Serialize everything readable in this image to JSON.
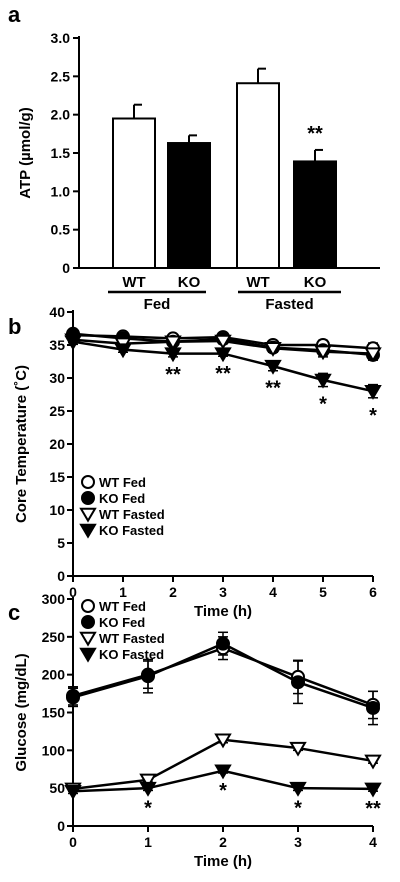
{
  "chart_data": [
    {
      "panel": "a",
      "type": "bar",
      "ylabel": "ATP (µmol/g)",
      "ylim": [
        0,
        3.0
      ],
      "yticks": [
        "0",
        "0.5",
        "1.0",
        "1.5",
        "2.0",
        "2.5",
        "3.0"
      ],
      "ytick_values": [
        0,
        0.5,
        1.0,
        1.5,
        2.0,
        2.5,
        3.0
      ],
      "categories": [
        "WT",
        "KO",
        "WT",
        "KO"
      ],
      "groups": [
        "Fed",
        "Fasted"
      ],
      "values": [
        1.95,
        1.63,
        2.41,
        1.39
      ],
      "errors": [
        0.18,
        0.1,
        0.19,
        0.15
      ],
      "fills": [
        "#ffffff",
        "#000000",
        "#ffffff",
        "#000000"
      ],
      "annotations": [
        {
          "text": "**",
          "bar": 3
        }
      ]
    },
    {
      "panel": "b",
      "type": "line",
      "xlabel": "Time (h)",
      "ylabel": "Core Temperature (˚C)",
      "xlim": [
        0,
        6
      ],
      "ylim": [
        0,
        40
      ],
      "xticks": [
        "0",
        "1",
        "2",
        "3",
        "4",
        "5",
        "6"
      ],
      "xtick_values": [
        0,
        1,
        2,
        3,
        4,
        5,
        6
      ],
      "yticks": [
        "0",
        "5",
        "10",
        "15",
        "20",
        "25",
        "30",
        "35",
        "40"
      ],
      "ytick_values": [
        0,
        5,
        10,
        15,
        20,
        25,
        30,
        35,
        40
      ],
      "x": [
        0,
        1,
        2,
        3,
        4,
        5,
        6
      ],
      "series": [
        {
          "name": "WT Fed",
          "marker": "circle-open",
          "values": [
            36.5,
            36.3,
            36.0,
            36.2,
            35.0,
            35.0,
            34.5
          ],
          "errors": [
            0.4,
            0.4,
            0.5,
            0.4,
            0.6,
            0.7,
            0.8
          ]
        },
        {
          "name": "KO Fed",
          "marker": "circle-filled",
          "values": [
            36.7,
            36.0,
            35.5,
            35.9,
            34.6,
            34.2,
            33.5
          ],
          "errors": [
            0.4,
            0.4,
            0.5,
            0.4,
            0.6,
            0.7,
            0.8
          ]
        },
        {
          "name": "WT Fasted",
          "marker": "triangle-open",
          "values": [
            35.8,
            35.2,
            35.5,
            35.6,
            34.5,
            34.0,
            33.7
          ],
          "errors": [
            0.4,
            0.4,
            0.5,
            0.4,
            0.6,
            0.8,
            0.8
          ]
        },
        {
          "name": "KO Fasted",
          "marker": "triangle-filled",
          "values": [
            35.5,
            34.3,
            33.7,
            33.7,
            31.8,
            29.7,
            28.0
          ],
          "errors": [
            0.4,
            0.4,
            0.5,
            0.4,
            0.7,
            1.0,
            1.0
          ]
        }
      ],
      "annotations": [
        {
          "x": 2,
          "text": "**"
        },
        {
          "x": 3,
          "text": "**"
        },
        {
          "x": 4,
          "text": "**"
        },
        {
          "x": 5,
          "text": "*"
        },
        {
          "x": 6,
          "text": "*"
        }
      ],
      "legend": "bottom-left"
    },
    {
      "panel": "c",
      "type": "line",
      "xlabel": "Time (h)",
      "ylabel": "Glucose (mg/dL)",
      "xlim": [
        0,
        4
      ],
      "ylim": [
        0,
        300
      ],
      "xticks": [
        "0",
        "1",
        "2",
        "3",
        "4"
      ],
      "xtick_values": [
        0,
        1,
        2,
        3,
        4
      ],
      "yticks": [
        "0",
        "50",
        "100",
        "150",
        "200",
        "250",
        "300"
      ],
      "ytick_values": [
        0,
        50,
        100,
        150,
        200,
        250,
        300
      ],
      "x": [
        0,
        1,
        2,
        3,
        4
      ],
      "series": [
        {
          "name": "WT Fed",
          "marker": "circle-open",
          "values": [
            172,
            200,
            235,
            197,
            160
          ],
          "errors": [
            12,
            18,
            15,
            22,
            18
          ]
        },
        {
          "name": "KO Fed",
          "marker": "circle-filled",
          "values": [
            170,
            198,
            241,
            190,
            156
          ],
          "errors": [
            12,
            22,
            15,
            28,
            22
          ]
        },
        {
          "name": "WT Fasted",
          "marker": "triangle-open",
          "values": [
            49,
            61,
            114,
            103,
            86
          ],
          "errors": [
            3,
            3,
            4,
            3,
            3
          ]
        },
        {
          "name": "KO Fasted",
          "marker": "triangle-filled",
          "values": [
            46,
            50,
            73,
            50,
            49
          ],
          "errors": [
            3,
            3,
            3,
            3,
            3
          ]
        }
      ],
      "annotations": [
        {
          "x": 1,
          "text": "*"
        },
        {
          "x": 2,
          "text": "*"
        },
        {
          "x": 3,
          "text": "*"
        },
        {
          "x": 4,
          "text": "**"
        }
      ],
      "legend": "top-left"
    }
  ]
}
